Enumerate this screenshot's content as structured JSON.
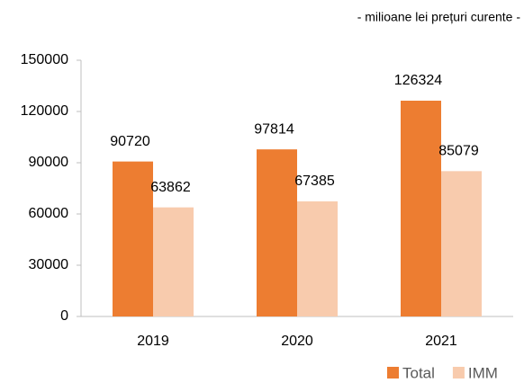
{
  "chart_data": {
    "type": "bar",
    "subtitle": "- milioane lei prețuri curente -",
    "categories": [
      "2019",
      "2020",
      "2021"
    ],
    "series": [
      {
        "name": "Total",
        "color": "#ed7d31",
        "values": [
          90720,
          97814,
          126324
        ]
      },
      {
        "name": "IMM",
        "color": "#f8cbad",
        "values": [
          63862,
          67385,
          85079
        ]
      }
    ],
    "ylim": [
      0,
      150000
    ],
    "yticks": [
      0,
      30000,
      60000,
      90000,
      120000,
      150000
    ],
    "grid": false,
    "legend": "bottom-right"
  }
}
